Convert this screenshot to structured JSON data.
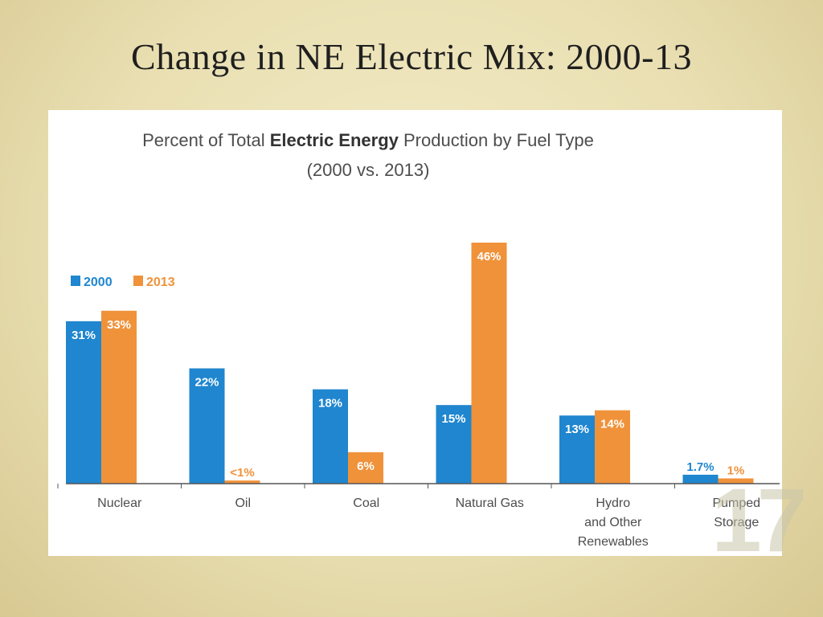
{
  "slide": {
    "title": "Change in NE Electric Mix: 2000-13",
    "page_number": "17"
  },
  "colors": {
    "series_2000": "#1f86cf",
    "series_2013": "#f0923a",
    "axis": "#555555",
    "text": "#4d4d4d"
  },
  "chart_data": {
    "type": "bar",
    "title_prefix": "Percent of Total ",
    "title_bold": "Electric Energy",
    "title_suffix": " Production by Fuel Type",
    "subtitle": "(2000 vs. 2013)",
    "categories": [
      [
        "Nuclear"
      ],
      [
        "Oil"
      ],
      [
        "Coal"
      ],
      [
        "Natural Gas"
      ],
      [
        "Hydro",
        "and Other",
        "Renewables"
      ],
      [
        "Pumped",
        "Storage"
      ]
    ],
    "series": [
      {
        "name": "2000",
        "values": [
          31,
          22,
          18,
          15,
          13,
          1.7
        ],
        "labels": [
          "31%",
          "22%",
          "18%",
          "15%",
          "13%",
          "1.7%"
        ]
      },
      {
        "name": "2013",
        "values": [
          33,
          0.6,
          6,
          46,
          14,
          1
        ],
        "labels": [
          "33%",
          "<1%",
          "6%",
          "46%",
          "14%",
          "1%"
        ]
      }
    ],
    "ylim": [
      0,
      46
    ],
    "xlabel": "",
    "ylabel": "",
    "legend_position": "top-left"
  }
}
